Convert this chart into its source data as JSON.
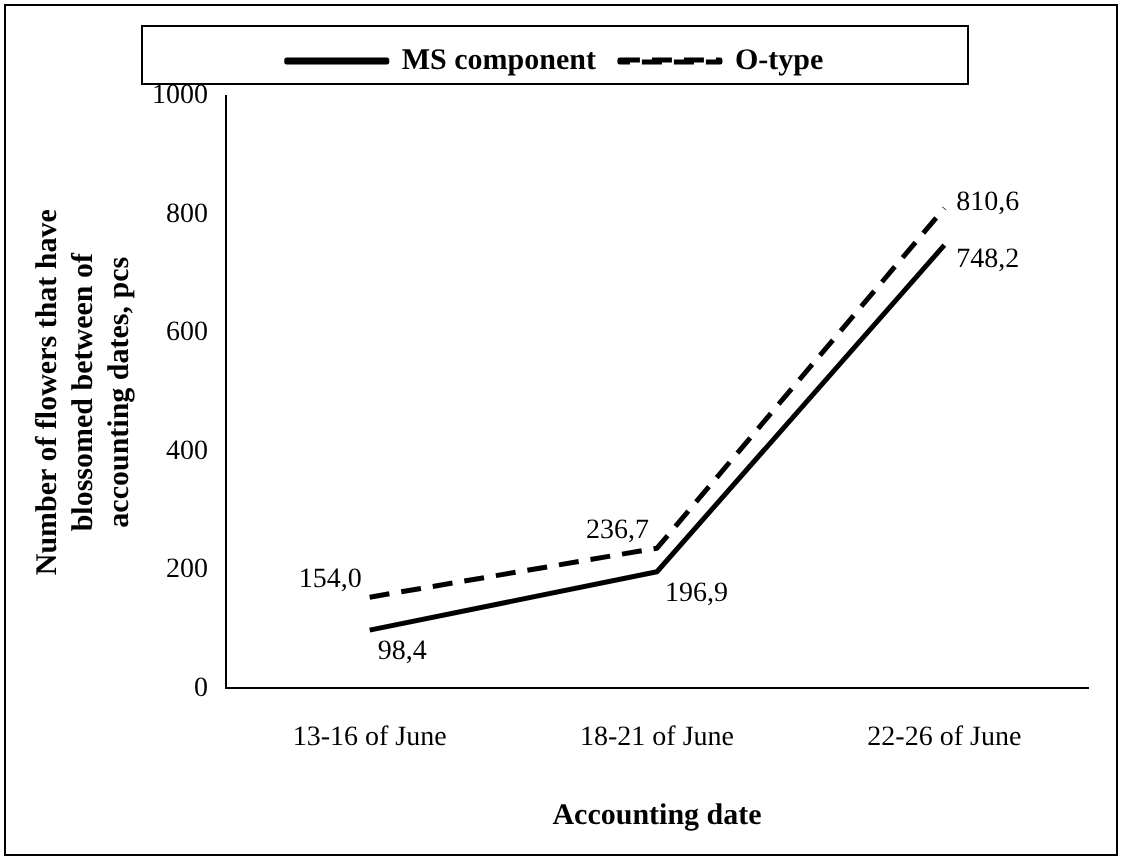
{
  "chart_data": {
    "type": "line",
    "xlabel": "Accounting date",
    "ylabel": "Number of flowers that have blossomed between of accounting dates, pcs",
    "categories": [
      "13-16 of June",
      "18-21 of June",
      "22-26 of June"
    ],
    "series": [
      {
        "name": "MS component",
        "color": "#000000",
        "values": [
          98.4,
          196.9,
          748.2
        ],
        "value_labels": [
          "98,4",
          "196,9",
          "748,2"
        ],
        "line_style": "solid"
      },
      {
        "name": "O-type",
        "color": "#000000",
        "values": [
          154.0,
          236.7,
          810.6
        ],
        "value_labels": [
          "154,0",
          "236,7",
          "810,6"
        ],
        "line_style": "dashed"
      }
    ],
    "ylim": [
      0,
      1000
    ],
    "yticks": [
      0,
      200,
      400,
      600,
      800,
      1000
    ],
    "grid": false,
    "legend": "top",
    "marker": "none"
  }
}
